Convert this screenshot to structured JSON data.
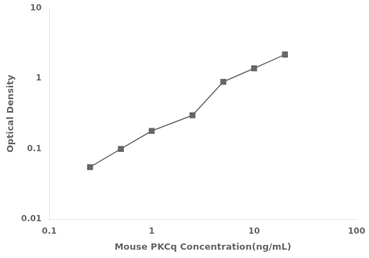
{
  "chart_data": {
    "type": "line",
    "x": [
      0.25,
      0.5,
      1.0,
      2.5,
      5.0,
      10.0,
      20.0
    ],
    "values": [
      0.055,
      0.1,
      0.18,
      0.3,
      0.9,
      1.4,
      2.2
    ],
    "xlabel": "Mouse PKCq Concentration(ng/mL)",
    "ylabel": "Optical Density",
    "color": "#666666",
    "marker": "square",
    "line_style": "solid",
    "log": true,
    "xlim": [
      0.1,
      100
    ],
    "ylim": [
      0.01,
      10
    ],
    "xticks": [
      0.1,
      1,
      10,
      100
    ],
    "yticks": [
      0.01,
      0.1,
      1,
      10
    ],
    "grid": false
  }
}
